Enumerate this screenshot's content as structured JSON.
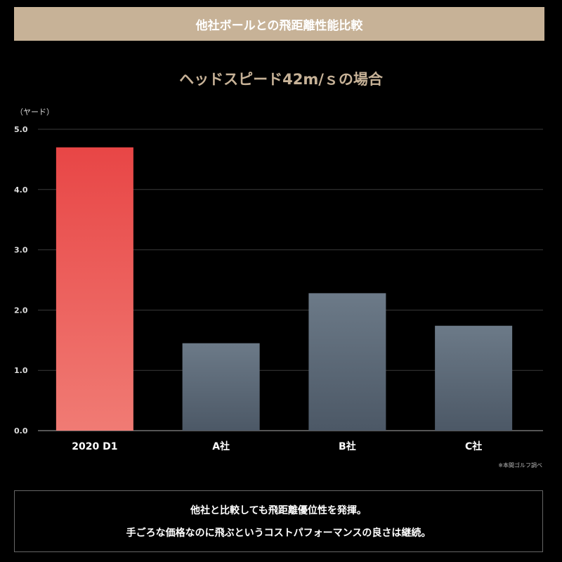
{
  "header": {
    "title": "他社ボールとの飛距離性能比較"
  },
  "chart_data": {
    "type": "bar",
    "title": "ヘッドスピード42m/ｓの場合",
    "ylabel": "（ヤード）",
    "xlabel": "",
    "categories": [
      "2020 D1",
      "A社",
      "B社",
      "C社"
    ],
    "values": [
      4.7,
      1.45,
      2.28,
      1.74
    ],
    "ylim": [
      0,
      5
    ],
    "yticks": [
      "0.0",
      "1.0",
      "2.0",
      "3.0",
      "4.0",
      "5.0"
    ],
    "grid": true,
    "colors": {
      "highlight_top": "#e84646",
      "highlight_bottom": "#f07b74",
      "other_top": "#6c7a88",
      "other_bottom": "#4c5866"
    }
  },
  "note": "※本間ゴルフ調べ",
  "message": {
    "line1": "他社と比較しても飛距離優位性を発揮。",
    "line2": "手ごろな価格なのに飛ぶというコストパフォーマンスの良さは継続。"
  }
}
